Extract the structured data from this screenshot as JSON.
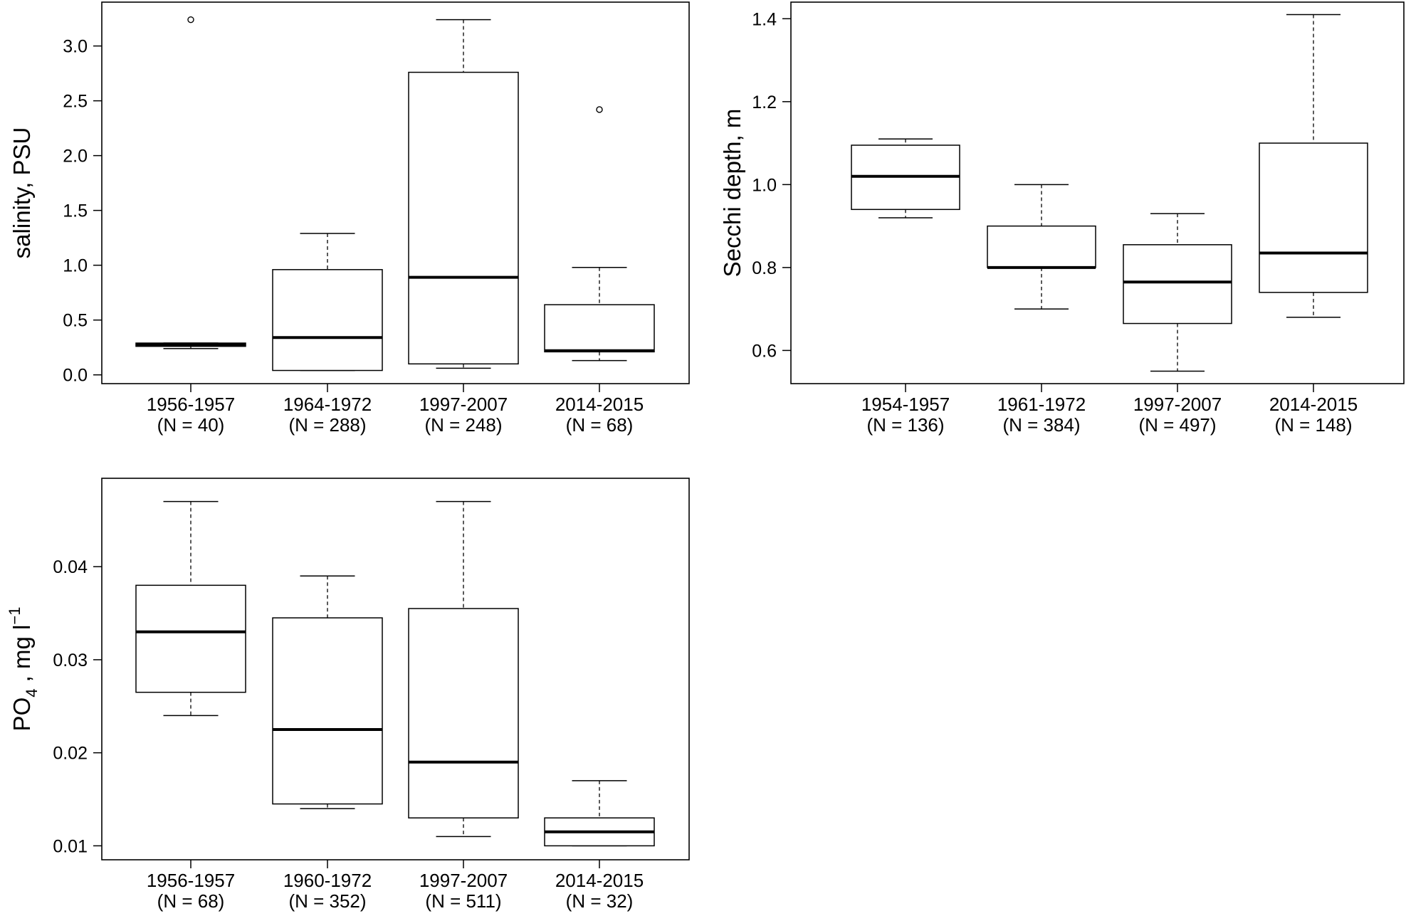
{
  "chart_data": [
    {
      "type": "box",
      "ylabel": "salinity, PSU",
      "ylim": [
        -0.08,
        3.4
      ],
      "yticks": [
        "0.0",
        "0.5",
        "1.0",
        "1.5",
        "2.0",
        "2.5",
        "3.0"
      ],
      "categories": [
        {
          "period": "1956-1957",
          "n": "(N = 40)"
        },
        {
          "period": "1964-1972",
          "n": "(N = 288)"
        },
        {
          "period": "1997-2007",
          "n": "(N = 248)"
        },
        {
          "period": "2014-2015",
          "n": "(N = 68)"
        }
      ],
      "boxes": [
        {
          "whisker_low": 0.24,
          "q1": 0.26,
          "median": 0.275,
          "q3": 0.29,
          "whisker_high": 0.29,
          "outliers": [
            3.24
          ]
        },
        {
          "whisker_low": 0.04,
          "q1": 0.04,
          "median": 0.34,
          "q3": 0.96,
          "whisker_high": 1.29,
          "outliers": []
        },
        {
          "whisker_low": 0.06,
          "q1": 0.1,
          "median": 0.89,
          "q3": 2.76,
          "whisker_high": 3.24,
          "outliers": []
        },
        {
          "whisker_low": 0.13,
          "q1": 0.21,
          "median": 0.22,
          "q3": 0.64,
          "whisker_high": 0.98,
          "outliers": [
            2.42
          ]
        }
      ]
    },
    {
      "type": "box",
      "ylabel": "Secchi depth, m",
      "ylim": [
        0.52,
        1.44
      ],
      "yticks": [
        "0.6",
        "0.8",
        "1.0",
        "1.2",
        "1.4"
      ],
      "categories": [
        {
          "period": "1954-1957",
          "n": "(N = 136)"
        },
        {
          "period": "1961-1972",
          "n": "(N = 384)"
        },
        {
          "period": "1997-2007",
          "n": "(N = 497)"
        },
        {
          "period": "2014-2015",
          "n": "(N = 148)"
        }
      ],
      "boxes": [
        {
          "whisker_low": 0.92,
          "q1": 0.94,
          "median": 1.02,
          "q3": 1.095,
          "whisker_high": 1.11,
          "outliers": []
        },
        {
          "whisker_low": 0.7,
          "q1": 0.8,
          "median": 0.8,
          "q3": 0.9,
          "whisker_high": 1.0,
          "outliers": []
        },
        {
          "whisker_low": 0.55,
          "q1": 0.665,
          "median": 0.765,
          "q3": 0.855,
          "whisker_high": 0.93,
          "outliers": []
        },
        {
          "whisker_low": 0.68,
          "q1": 0.74,
          "median": 0.835,
          "q3": 1.1,
          "whisker_high": 1.41,
          "outliers": []
        }
      ]
    },
    {
      "type": "box",
      "ylabel_main": "PO",
      "ylabel_sub": "4",
      "ylabel_rest": " , mg l",
      "ylabel_sup": "−1",
      "ylim": [
        0.0085,
        0.0495
      ],
      "yticks": [
        "0.01",
        "0.02",
        "0.03",
        "0.04"
      ],
      "categories": [
        {
          "period": "1956-1957",
          "n": "(N = 68)"
        },
        {
          "period": "1960-1972",
          "n": "(N = 352)"
        },
        {
          "period": "1997-2007",
          "n": "(N = 511)"
        },
        {
          "period": "2014-2015",
          "n": "(N = 32)"
        }
      ],
      "boxes": [
        {
          "whisker_low": 0.024,
          "q1": 0.0265,
          "median": 0.033,
          "q3": 0.038,
          "whisker_high": 0.047,
          "outliers": []
        },
        {
          "whisker_low": 0.014,
          "q1": 0.0145,
          "median": 0.0225,
          "q3": 0.0345,
          "whisker_high": 0.039,
          "outliers": []
        },
        {
          "whisker_low": 0.011,
          "q1": 0.013,
          "median": 0.019,
          "q3": 0.0355,
          "whisker_high": 0.047,
          "outliers": []
        },
        {
          "whisker_low": 0.01,
          "q1": 0.01,
          "median": 0.0115,
          "q3": 0.013,
          "whisker_high": 0.017,
          "outliers": []
        }
      ]
    }
  ]
}
